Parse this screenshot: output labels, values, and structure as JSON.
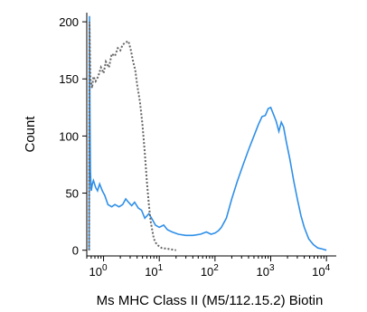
{
  "chart_data": {
    "type": "line",
    "xlabel": "Ms MHC Class II (M5/112.15.2) Biotin",
    "ylabel": "Count",
    "xscale": "log",
    "xlim": [
      0.5,
      15000
    ],
    "ylim": [
      -5,
      208
    ],
    "grid": false,
    "legend": "none",
    "y_ticks": [
      {
        "value": 0,
        "label": "0"
      },
      {
        "value": 50,
        "label": "50"
      },
      {
        "value": 100,
        "label": "100"
      },
      {
        "value": 150,
        "label": "150"
      },
      {
        "value": 200,
        "label": "200"
      }
    ],
    "x_ticks": [
      {
        "value": 1,
        "base": "10",
        "exp": "0"
      },
      {
        "value": 10,
        "base": "10",
        "exp": "1"
      },
      {
        "value": 100,
        "base": "10",
        "exp": "2"
      },
      {
        "value": 1000,
        "base": "10",
        "exp": "3"
      },
      {
        "value": 10000,
        "base": "10",
        "exp": "4"
      }
    ],
    "series": [
      {
        "color": "#2f8fe8",
        "style": "solid",
        "points": [
          [
            0.55,
            0
          ],
          [
            0.56,
            205
          ],
          [
            0.57,
            120
          ],
          [
            0.58,
            70
          ],
          [
            0.6,
            52
          ],
          [
            0.63,
            58
          ],
          [
            0.66,
            61
          ],
          [
            0.72,
            55
          ],
          [
            0.78,
            52
          ],
          [
            0.85,
            58
          ],
          [
            0.95,
            52
          ],
          [
            1.05,
            48
          ],
          [
            1.2,
            40
          ],
          [
            1.4,
            38
          ],
          [
            1.6,
            40
          ],
          [
            1.9,
            38
          ],
          [
            2.2,
            40
          ],
          [
            2.5,
            45
          ],
          [
            2.8,
            42
          ],
          [
            3.2,
            39
          ],
          [
            3.6,
            42
          ],
          [
            4.2,
            37
          ],
          [
            4.8,
            35
          ],
          [
            5.5,
            28
          ],
          [
            6.5,
            32
          ],
          [
            7.5,
            27
          ],
          [
            8.5,
            22
          ],
          [
            10,
            20
          ],
          [
            12,
            22
          ],
          [
            14,
            18
          ],
          [
            17,
            16
          ],
          [
            22,
            14
          ],
          [
            30,
            13
          ],
          [
            40,
            13
          ],
          [
            55,
            14
          ],
          [
            70,
            16
          ],
          [
            85,
            14
          ],
          [
            100,
            15
          ],
          [
            115,
            17
          ],
          [
            130,
            20
          ],
          [
            160,
            28
          ],
          [
            200,
            45
          ],
          [
            250,
            60
          ],
          [
            320,
            75
          ],
          [
            400,
            88
          ],
          [
            500,
            100
          ],
          [
            600,
            110
          ],
          [
            700,
            117
          ],
          [
            800,
            118
          ],
          [
            900,
            124
          ],
          [
            1000,
            125
          ],
          [
            1100,
            120
          ],
          [
            1250,
            113
          ],
          [
            1400,
            104
          ],
          [
            1550,
            112
          ],
          [
            1700,
            108
          ],
          [
            1900,
            95
          ],
          [
            2200,
            80
          ],
          [
            2600,
            60
          ],
          [
            3000,
            45
          ],
          [
            3500,
            30
          ],
          [
            4000,
            20
          ],
          [
            4800,
            10
          ],
          [
            5800,
            5
          ],
          [
            7000,
            2
          ],
          [
            8500,
            1
          ],
          [
            10000,
            0
          ]
        ]
      },
      {
        "color": "#666666",
        "style": "dotted",
        "points": [
          [
            0.55,
            0
          ],
          [
            0.56,
            200
          ],
          [
            0.58,
            150
          ],
          [
            0.62,
            142
          ],
          [
            0.66,
            152
          ],
          [
            0.72,
            148
          ],
          [
            0.8,
            152
          ],
          [
            0.9,
            160
          ],
          [
            1.0,
            155
          ],
          [
            1.1,
            165
          ],
          [
            1.25,
            160
          ],
          [
            1.4,
            172
          ],
          [
            1.6,
            170
          ],
          [
            1.8,
            177
          ],
          [
            2.0,
            175
          ],
          [
            2.2,
            180
          ],
          [
            2.5,
            182
          ],
          [
            2.8,
            183
          ],
          [
            3.1,
            175
          ],
          [
            3.4,
            165
          ],
          [
            3.7,
            158
          ],
          [
            4.0,
            145
          ],
          [
            4.5,
            130
          ],
          [
            5.0,
            110
          ],
          [
            5.5,
            85
          ],
          [
            6.0,
            60
          ],
          [
            6.5,
            40
          ],
          [
            7.0,
            25
          ],
          [
            8.0,
            10
          ],
          [
            9.0,
            5
          ],
          [
            11,
            2
          ],
          [
            15,
            1
          ],
          [
            20,
            0
          ]
        ]
      }
    ]
  }
}
